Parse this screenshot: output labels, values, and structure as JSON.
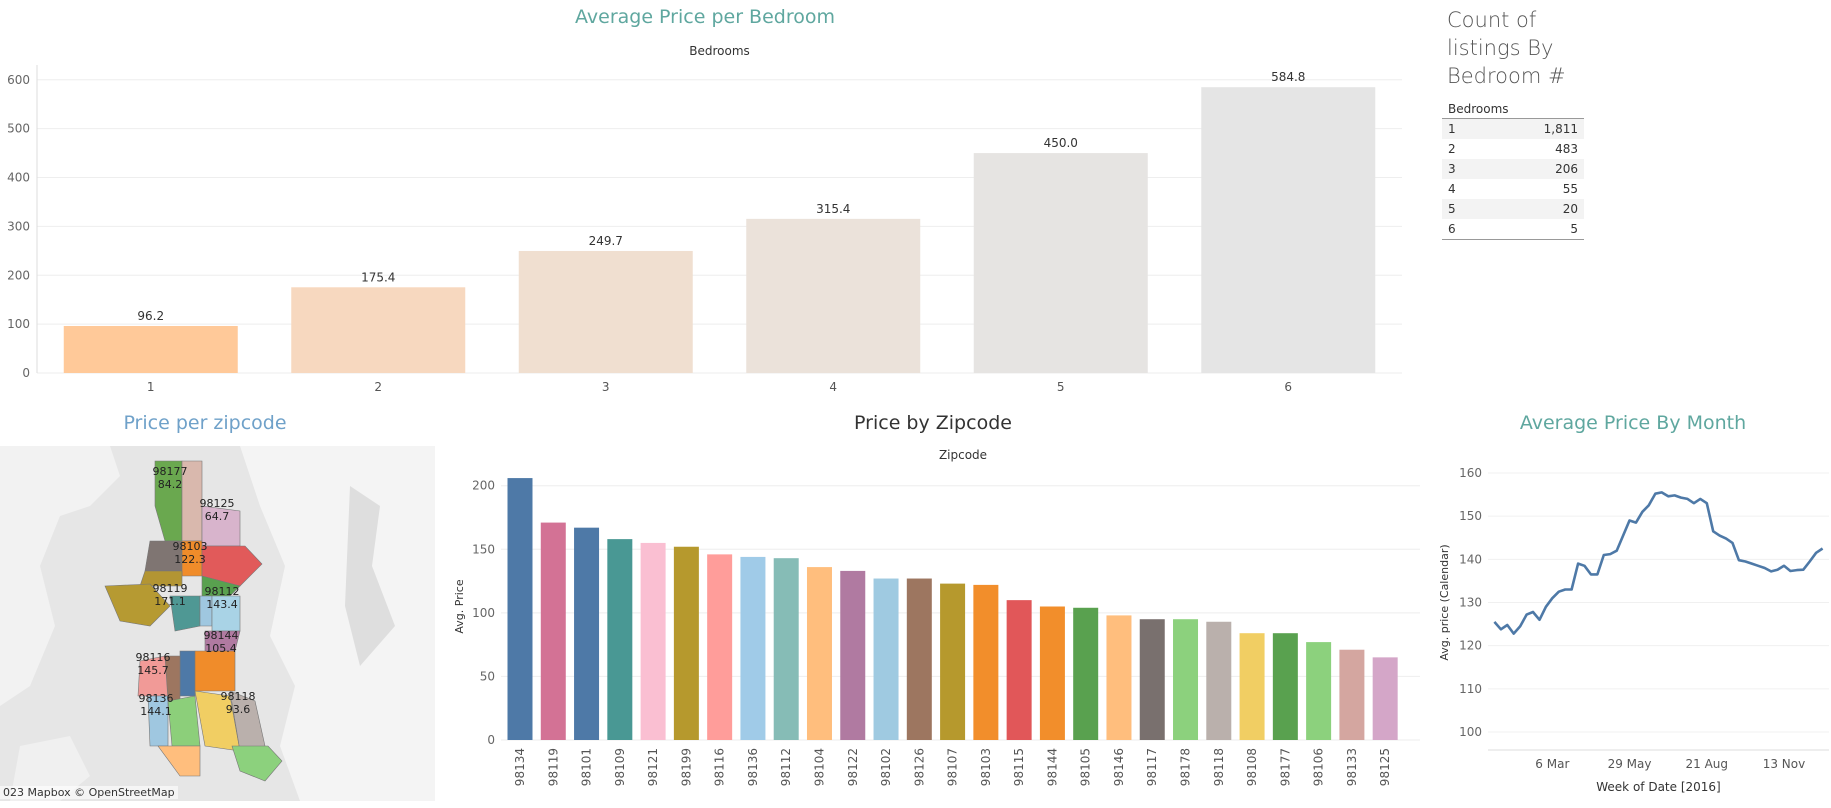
{
  "titles": {
    "bedroom_chart": "Average Price per Bedroom",
    "count_table": "Count of listings By Bedroom #",
    "map": "Price per zipcode",
    "zip_chart": "Price by Zipcode",
    "month_chart": "Average Price By Month"
  },
  "map_attribution": "023 Mapbox © OpenStreetMap",
  "count_table": {
    "header": "Bedrooms",
    "rows": [
      {
        "bedrooms": "1",
        "count": "1,811"
      },
      {
        "bedrooms": "2",
        "count": "483"
      },
      {
        "bedrooms": "3",
        "count": "206"
      },
      {
        "bedrooms": "4",
        "count": "55"
      },
      {
        "bedrooms": "5",
        "count": "20"
      },
      {
        "bedrooms": "6",
        "count": "5"
      }
    ]
  },
  "map_labels": [
    {
      "zip": "98177",
      "value": "84.2"
    },
    {
      "zip": "98125",
      "value": "64.7"
    },
    {
      "zip": "98103",
      "value": "122.3"
    },
    {
      "zip": "98119",
      "value": "171.1"
    },
    {
      "zip": "98112",
      "value": "143.4"
    },
    {
      "zip": "98144",
      "value": "105.4"
    },
    {
      "zip": "98116",
      "value": "145.7"
    },
    {
      "zip": "98136",
      "value": "144.1"
    },
    {
      "zip": "98118",
      "value": "93.6"
    }
  ],
  "chart_data": [
    {
      "type": "bar",
      "title": "Average Price per Bedroom",
      "xlabel": "Bedrooms",
      "ylabel": "",
      "ylim": [
        0,
        620
      ],
      "yticks": [
        0,
        100,
        200,
        300,
        400,
        500,
        600
      ],
      "categories": [
        "1",
        "2",
        "3",
        "4",
        "5",
        "6"
      ],
      "values": [
        96.2,
        175.4,
        249.7,
        315.4,
        450.0,
        584.8
      ],
      "data_labels": [
        "96.2",
        "175.4",
        "249.7",
        "315.4",
        "450.0",
        "584.8"
      ],
      "colors": [
        "#ffc999",
        "#f7d8bf",
        "#f0dfd0",
        "#ebe2da",
        "#e6e4e2",
        "#e5e5e5"
      ],
      "grid": true
    },
    {
      "type": "bar",
      "title": "Price by Zipcode",
      "xlabel": "Zipcode",
      "ylabel": "Avg. Price",
      "ylim": [
        0,
        210
      ],
      "yticks": [
        0,
        50,
        100,
        150,
        200
      ],
      "categories": [
        "98134",
        "98119",
        "98101",
        "98109",
        "98121",
        "98199",
        "98116",
        "98136",
        "98112",
        "98104",
        "98122",
        "98102",
        "98126",
        "98107",
        "98103",
        "98115",
        "98144",
        "98105",
        "98146",
        "98117",
        "98178",
        "98118",
        "98108",
        "98177",
        "98106",
        "98133",
        "98125"
      ],
      "values": [
        206,
        171,
        167,
        158,
        155,
        152,
        146,
        144,
        143,
        136,
        133,
        127,
        127,
        123,
        122,
        110,
        105,
        104,
        98,
        95,
        95,
        93,
        84,
        84,
        77,
        71,
        65
      ],
      "colors": [
        "#4e79a7",
        "#d37295",
        "#4e79a7",
        "#499894",
        "#fabfd2",
        "#b6992d",
        "#ff9d9a",
        "#a0cbe8",
        "#86bcb6",
        "#ffbe7d",
        "#b07aa1",
        "#9fcae1",
        "#9d7660",
        "#b6992d",
        "#f28e2b",
        "#e15759",
        "#f28e2b",
        "#59a14f",
        "#ffbe7d",
        "#79706e",
        "#8cd17d",
        "#bab0ac",
        "#f1ce63",
        "#59a14f",
        "#8cd17d",
        "#d4a6a0",
        "#d4a6c8"
      ],
      "grid": true
    },
    {
      "type": "line",
      "title": "Average Price By Month",
      "xlabel": "Week of Date [2016]",
      "ylabel": "Avg. price (Calendar)",
      "ylim": [
        97,
        163
      ],
      "yticks": [
        100,
        110,
        120,
        130,
        140,
        150,
        160
      ],
      "xticks": [
        {
          "label": "6 Mar",
          "week": 10
        },
        {
          "label": "29 May",
          "week": 22
        },
        {
          "label": "21 Aug",
          "week": 34
        },
        {
          "label": "13 Nov",
          "week": 46
        }
      ],
      "x_range": [
        0,
        53
      ],
      "series": [
        {
          "color": "#4e79a7",
          "x": [
            1,
            2,
            3,
            4,
            5,
            6,
            7,
            8,
            9,
            10,
            11,
            12,
            13,
            14,
            15,
            16,
            17,
            18,
            19,
            20,
            21,
            22,
            23,
            24,
            25,
            26,
            27,
            28,
            29,
            30,
            31,
            32,
            33,
            34,
            35,
            36,
            37,
            38,
            39,
            40,
            41,
            42,
            43,
            44,
            45,
            46,
            47,
            48,
            49,
            50,
            51,
            52
          ],
          "values": [
            125.5,
            123.8,
            124.8,
            122.8,
            124.5,
            127.2,
            127.8,
            126,
            129,
            131,
            132.5,
            133,
            133,
            139,
            138.5,
            136.5,
            136.5,
            141,
            141.2,
            142,
            145.5,
            149,
            148.5,
            151,
            152.5,
            155.2,
            155.5,
            154.6,
            154.8,
            154.3,
            154,
            153,
            154,
            153,
            146.5,
            145.5,
            144.8,
            143.8,
            139.8,
            139.5,
            139,
            138.5,
            138,
            137.2,
            137.6,
            138.5,
            137.3,
            137.5,
            137.6,
            139.5,
            141.5,
            142.5
          ]
        }
      ],
      "grid": true
    }
  ]
}
